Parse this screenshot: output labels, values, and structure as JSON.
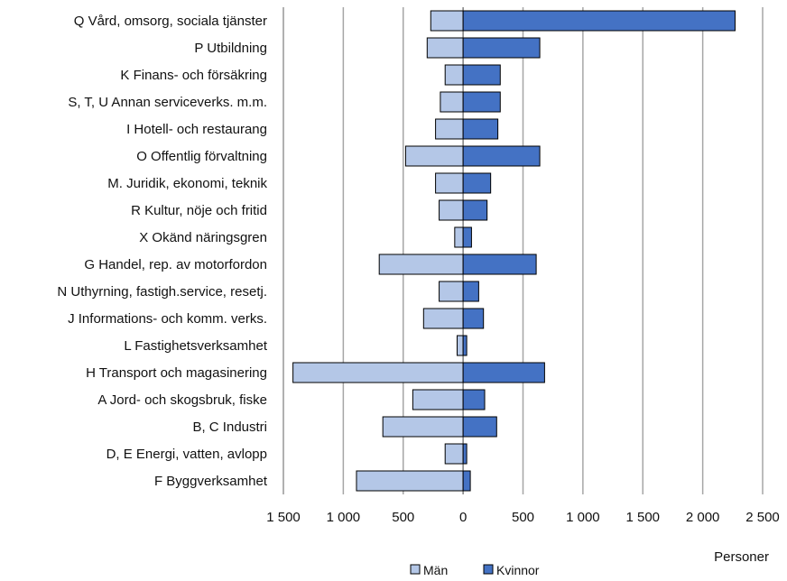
{
  "chart_data": {
    "type": "bar",
    "orientation": "horizontal",
    "layout": "butterfly",
    "categories": [
      "Q Vård, omsorg, sociala tjänster",
      "P Utbildning",
      "K Finans- och försäkring",
      "S, T, U Annan serviceverks. m.m.",
      "I Hotell- och restaurang",
      "O Offentlig förvaltning",
      "M. Juridik, ekonomi, teknik",
      "R Kultur, nöje och fritid",
      "X Okänd näringsgren",
      "G Handel, rep. av motorfordon",
      "N Uthyrning, fastigh.service, resetj.",
      "J Informations- och komm. verks.",
      "L Fastighetsverksamhet",
      "H Transport och magasinering",
      "A Jord- och skogsbruk, fiske",
      "B, C Industri",
      "D, E Energi, vatten, avlopp",
      "F Byggverksamhet"
    ],
    "series": [
      {
        "name": "Män",
        "color": "#b4c7e7",
        "values": [
          270,
          300,
          150,
          190,
          230,
          480,
          230,
          200,
          70,
          700,
          200,
          330,
          50,
          1420,
          420,
          670,
          150,
          890
        ]
      },
      {
        "name": "Kvinnor",
        "color": "#4472c4",
        "values": [
          2270,
          640,
          310,
          310,
          290,
          640,
          230,
          200,
          70,
          610,
          130,
          170,
          30,
          680,
          180,
          280,
          30,
          60
        ]
      }
    ],
    "xlim": [
      -1500,
      2500
    ],
    "xticks": [
      -1500,
      -1000,
      -500,
      0,
      500,
      1000,
      1500,
      2000,
      2500
    ],
    "xtick_labels": [
      "1 500",
      "1 000",
      "500",
      "0",
      "500",
      "1 000",
      "1 500",
      "2 000",
      "2 500"
    ],
    "unit_label": "Personer",
    "grid": true,
    "legend_position": "bottom"
  }
}
